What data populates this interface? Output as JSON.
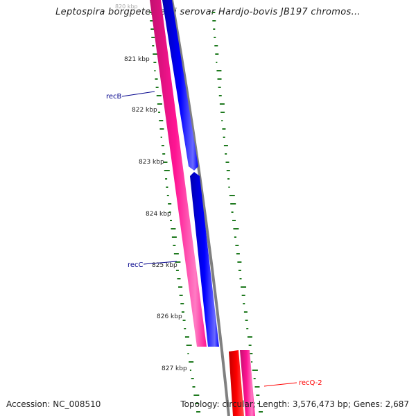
{
  "title": "Leptospira borgpetersenii serovar Hardjo-bovis JB197 chromos...",
  "accession": "Accession: NC_008510",
  "summary": "Topology: circular; Length: 3,576,473 bp; Genes: 2,687",
  "ruler": [
    "820 kbp",
    "821 kbp",
    "822 kbp",
    "823 kbp",
    "824 kbp",
    "825 kbp",
    "826 kbp",
    "827 kbp"
  ],
  "genes": [
    {
      "label": "recB",
      "color": "#00008b"
    },
    {
      "label": "recC",
      "color": "#00008b"
    },
    {
      "label": "recQ-2",
      "color": "#ff0000"
    }
  ],
  "colors": {
    "pink": "#ff1493",
    "blue": "#0000ff",
    "red": "#ff0000",
    "backbone": "#808080",
    "ticks": "#1f7a1f"
  }
}
